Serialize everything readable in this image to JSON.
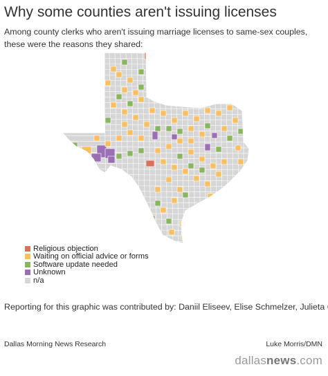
{
  "title": "Why some counties aren't issuing licenses",
  "subtitle": "Among county clerks who aren't issuing marriage licenses to same-sex couples, these were the reasons they shared:",
  "legend": [
    {
      "label": "Religious objection",
      "color": "#d9705c"
    },
    {
      "label": "Waiting on official advice or forms",
      "color": "#f4c061"
    },
    {
      "label": "Software update needed",
      "color": "#8ab560"
    },
    {
      "label": "Unknown",
      "color": "#9b6fb3"
    },
    {
      "label": "n/a",
      "color": "#d6d6d6"
    }
  ],
  "map_colors": {
    "base": "#d6d6d6",
    "border": "#ffffff"
  },
  "counties": [
    {
      "category": 0,
      "label": "Religious objection"
    },
    {
      "category": 0,
      "label": "Religious objection"
    },
    {
      "category": 3,
      "label": "Unknown"
    },
    {
      "category": 3,
      "label": "Unknown"
    },
    {
      "category": 3,
      "label": "Unknown"
    },
    {
      "category": 3,
      "label": "Unknown"
    }
  ],
  "credits": "Reporting for this graphic was contributed by: Daniil Eliseev, Elise Schmelzer, Julieta Chiquillo, Eva-Marie Ayala, Emma Court, Daniel Lathrop, Kristen Taketa, Sylvan Lane, Luke Morris, Naomi Nishihara, Meredith Shamburger, Michelle Pitcher. and Nanette Light.",
  "source": "Dallas Morning News Research",
  "byline": "Luke Morris/DMN",
  "brand": {
    "prefix": "dallas",
    "bold": "news",
    "suffix": ".com"
  }
}
